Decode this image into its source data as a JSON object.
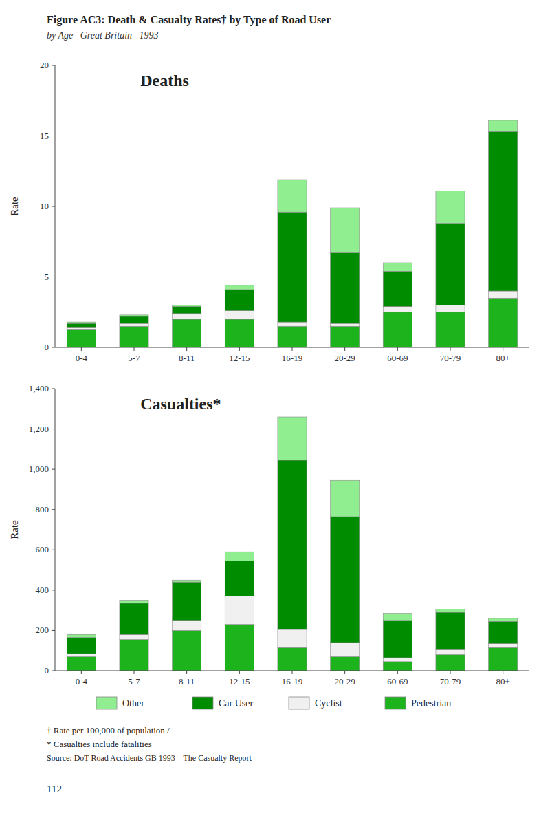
{
  "title": "Figure AC3: Death & Casualty Rates† by Type of Road User",
  "subtitle": "by Age   Great Britain   1993",
  "annotations": [
    "† Rate per 100,000 of population /",
    "* Casualties include fatalities",
    "Source: DoT Road Accidents GB 1993 – The Casualty Report",
    "112"
  ],
  "chart_data": [
    {
      "type": "bar",
      "title": "Deaths",
      "y_label": "Rate",
      "stacked": true,
      "grid": false,
      "categories": [
        "0-4",
        "5-7",
        "8-11",
        "12-15",
        "16-19",
        "20-29",
        "60-69",
        "70-79",
        "80+"
      ],
      "series": [
        {
          "name": "Pedestrian",
          "color": "#1db31d",
          "values": [
            1.3,
            1.5,
            2.0,
            2.0,
            1.5,
            1.5,
            2.5,
            2.5,
            3.5
          ]
        },
        {
          "name": "Cyclist",
          "color": "#f0f0f0",
          "values": [
            0.1,
            0.2,
            0.4,
            0.6,
            0.3,
            0.2,
            0.4,
            0.5,
            0.5
          ]
        },
        {
          "name": "Car User",
          "color": "#008c00",
          "values": [
            0.3,
            0.5,
            0.5,
            1.5,
            7.8,
            5.0,
            2.5,
            5.8,
            11.3
          ]
        },
        {
          "name": "Other",
          "color": "#90ee90",
          "values": [
            0.1,
            0.1,
            0.1,
            0.3,
            2.3,
            3.2,
            0.6,
            2.3,
            0.8
          ]
        }
      ],
      "ylim": [
        0,
        20
      ],
      "yticks": [
        0,
        5,
        10,
        15,
        20
      ]
    },
    {
      "type": "bar",
      "title": "Casualties*",
      "y_label": "Rate",
      "stacked": true,
      "grid": false,
      "legend": "bottom",
      "categories": [
        "0-4",
        "5-7",
        "8-11",
        "12-15",
        "16-19",
        "20-29",
        "60-69",
        "70-79",
        "80+"
      ],
      "series": [
        {
          "name": "Pedestrian",
          "color": "#1db31d",
          "values": [
            70,
            155,
            200,
            230,
            115,
            70,
            45,
            80,
            115
          ]
        },
        {
          "name": "Cyclist",
          "color": "#f0f0f0",
          "values": [
            15,
            25,
            50,
            140,
            90,
            70,
            20,
            25,
            20
          ]
        },
        {
          "name": "Car User",
          "color": "#008c00",
          "values": [
            80,
            155,
            190,
            175,
            840,
            625,
            185,
            185,
            110
          ]
        },
        {
          "name": "Other",
          "color": "#90ee90",
          "values": [
            15,
            15,
            10,
            45,
            215,
            180,
            35,
            15,
            15
          ]
        }
      ],
      "ylim": [
        0,
        1400
      ],
      "yticks": [
        0,
        200,
        400,
        600,
        800,
        {
          "value": 1000,
          "label": "1,000"
        },
        {
          "value": 1200,
          "label": "1,200"
        },
        {
          "value": 1400,
          "label": "1,400"
        }
      ]
    }
  ]
}
